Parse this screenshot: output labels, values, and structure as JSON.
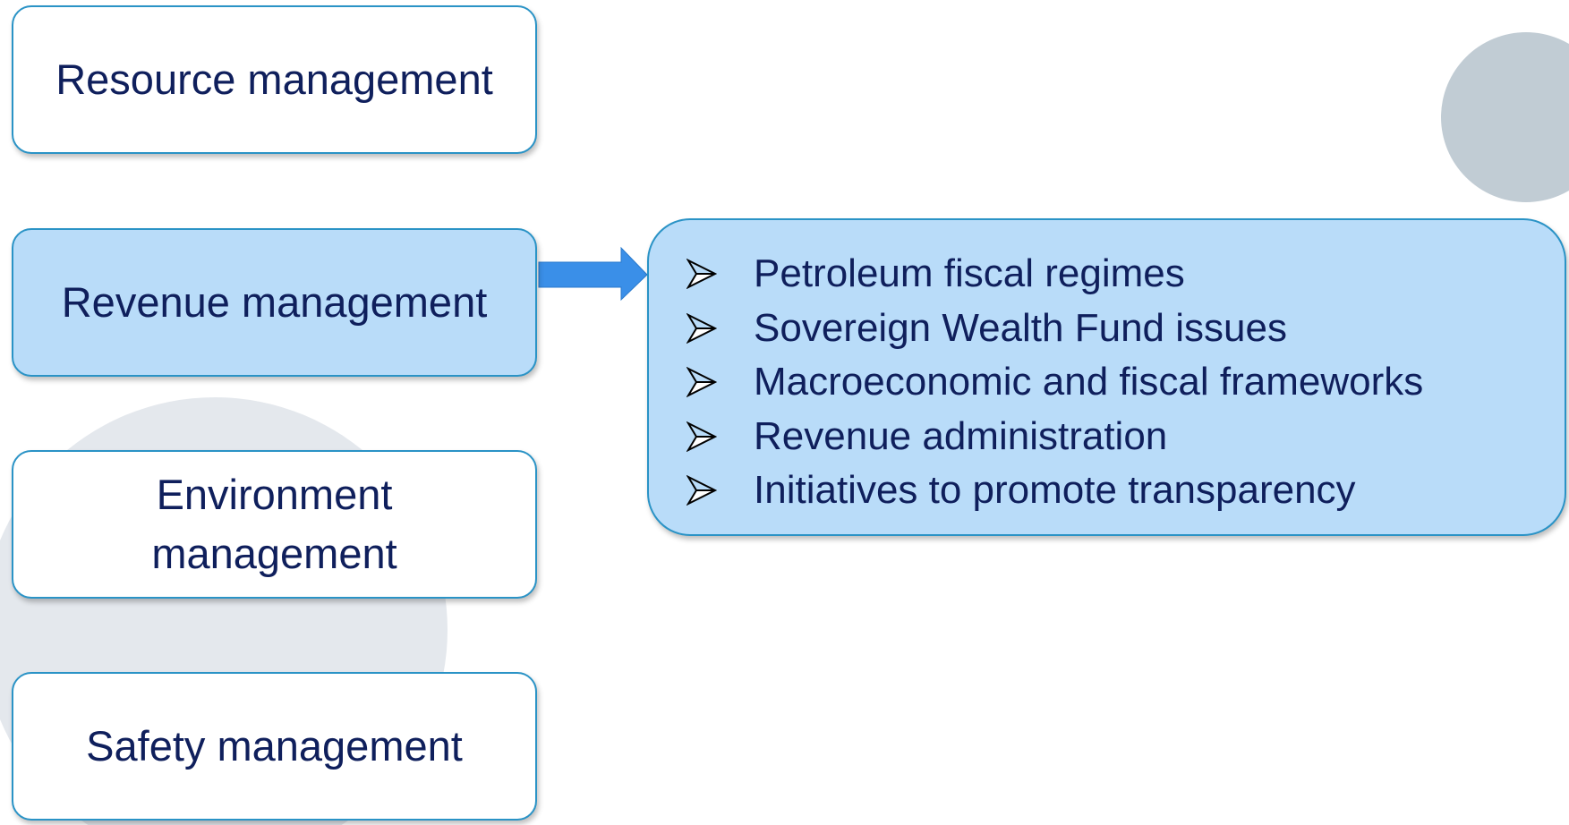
{
  "categories": [
    {
      "label": "Resource management"
    },
    {
      "label": "Revenue management"
    },
    {
      "label": "Environment management"
    },
    {
      "label": "Safety management"
    }
  ],
  "details": {
    "items": [
      "Petroleum fiscal regimes",
      "Sovereign Wealth Fund issues",
      "Macroeconomic and fiscal frameworks",
      "Revenue administration",
      "Initiatives to promote transparency"
    ]
  }
}
